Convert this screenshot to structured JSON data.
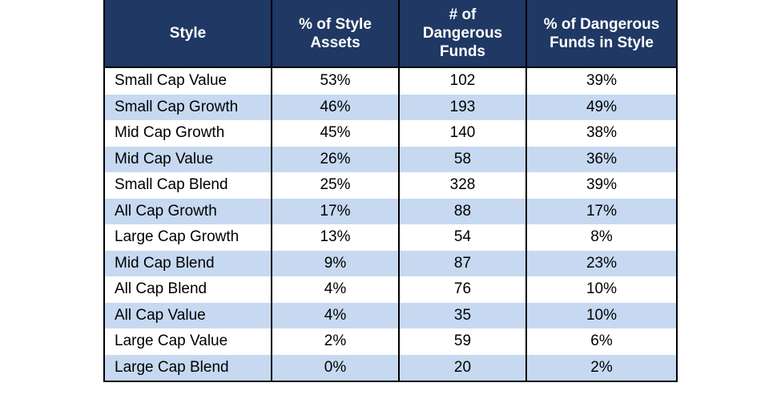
{
  "chart_data": {
    "type": "table",
    "headers": [
      "Style",
      "% of Style Assets",
      "# of Dangerous Funds",
      "% of Dangerous Funds in Style"
    ],
    "header_lines": [
      [
        "Style"
      ],
      [
        "% of Style",
        "Assets"
      ],
      [
        "# of",
        "Dangerous",
        "Funds"
      ],
      [
        "% of Dangerous",
        "Funds in Style"
      ]
    ],
    "rows": [
      [
        "Small Cap Value",
        "53%",
        "102",
        "39%"
      ],
      [
        "Small Cap Growth",
        "46%",
        "193",
        "49%"
      ],
      [
        "Mid Cap Growth",
        "45%",
        "140",
        "38%"
      ],
      [
        "Mid Cap Value",
        "26%",
        "58",
        "36%"
      ],
      [
        "Small Cap Blend",
        "25%",
        "328",
        "39%"
      ],
      [
        "All Cap Growth",
        "17%",
        "88",
        "17%"
      ],
      [
        "Large Cap Growth",
        "13%",
        "54",
        "8%"
      ],
      [
        "Mid Cap Blend",
        "9%",
        "87",
        "23%"
      ],
      [
        "All Cap Blend",
        "4%",
        "76",
        "10%"
      ],
      [
        "All Cap Value",
        "4%",
        "35",
        "10%"
      ],
      [
        "Large Cap Value",
        "2%",
        "59",
        "6%"
      ],
      [
        "Large Cap Blend",
        "0%",
        "20",
        "2%"
      ]
    ],
    "colors": {
      "header_bg": "#1f3864",
      "header_text": "#ffffff",
      "band_bg": "#c6d9f1",
      "plain_bg": "#ffffff",
      "border": "#000000"
    }
  }
}
